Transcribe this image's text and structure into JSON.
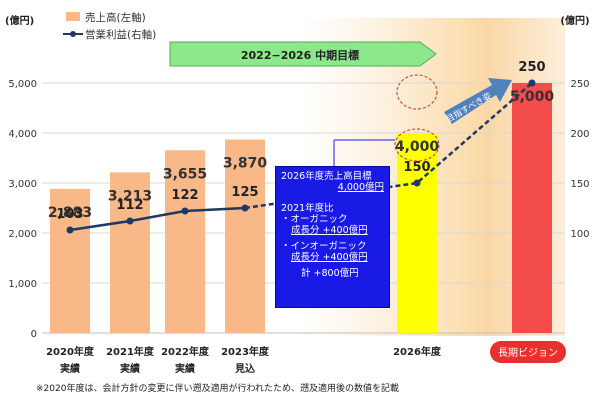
{
  "chart_data": {
    "type": "bar",
    "categories": [
      "2020年度",
      "2021年度",
      "2022年度",
      "2023年度",
      "2026年度",
      "長期ビジョン"
    ],
    "category_notes": [
      "実績",
      "実績",
      "実績",
      "見込",
      "",
      ""
    ],
    "ylabel": "(億円)",
    "y2label": "(億円)",
    "ylim": [
      0,
      5000
    ],
    "y2lim": [
      0,
      250
    ],
    "yticks": [
      0,
      1000,
      2000,
      3000,
      4000,
      5000
    ],
    "yticklabels": [
      "0",
      "1,000",
      "2,000",
      "3,000",
      "4,000",
      "5,000"
    ],
    "y2ticks": [
      100,
      150,
      200,
      250
    ],
    "series": [
      {
        "name": "売上高(左軸)",
        "type": "bar",
        "axis": "left",
        "values": [
          2883,
          3213,
          3655,
          3870,
          4000,
          5000
        ],
        "labels": [
          "2,883",
          "3,213",
          "3,655",
          "3,870",
          "4,000",
          "5,000"
        ],
        "colors": [
          "#f8b888",
          "#f8b888",
          "#f8b888",
          "#f8b888",
          "#ffff00",
          "#f44b4b"
        ]
      },
      {
        "name": "営業利益(右軸)",
        "type": "line",
        "axis": "right",
        "values": [
          103,
          112,
          122,
          125,
          150,
          250
        ],
        "color": "#1f3864"
      }
    ],
    "banner": "2022−2026 中期目標",
    "arrow_label": "目指すべき姿",
    "footnote": "※2020年度は、会計方針の変更に伴い遡及適用が行われたため、遡及適用後の数値を記載",
    "box": {
      "title": "2026年度売上高目標",
      "target": "4,000億円",
      "compare": "2021年度比",
      "organic_label": "・オーガニック",
      "organic_line": "成長分 +400億円",
      "inorganic_label": "・インオーガニック",
      "inorganic_line": "成長分 +400億円",
      "total_line": "計 +800億円"
    },
    "colors": {
      "bar": "#f8b888",
      "target_bar": "#ffff00",
      "vision_bar": "#f44b4b",
      "line": "#1f3864",
      "banner": "#8be88b",
      "arrow": "#4f81bd",
      "box": "#1a1ae6"
    }
  }
}
